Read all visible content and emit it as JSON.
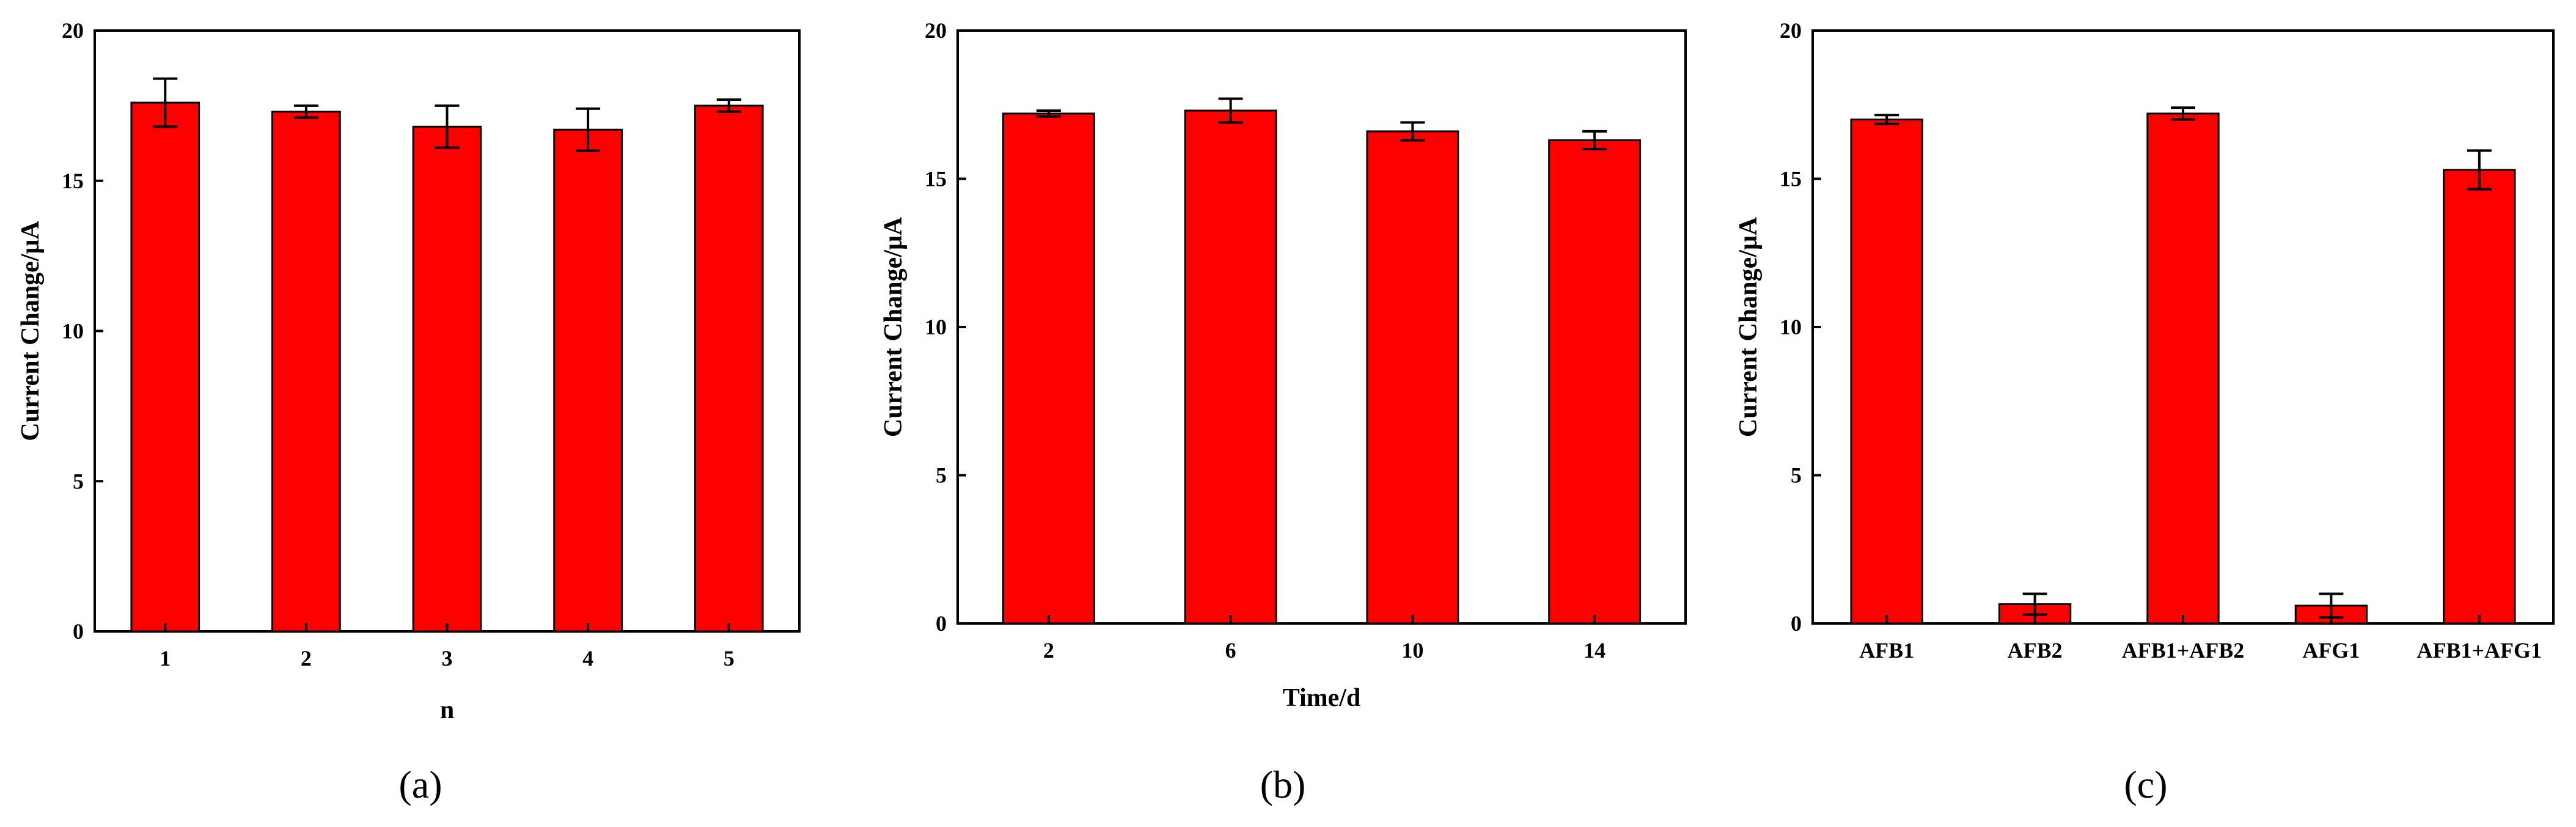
{
  "colors": {
    "bar": "#ff0000",
    "axis": "#000000"
  },
  "chart_data": [
    {
      "type": "bar",
      "caption": "(a)",
      "xlabel": "n",
      "ylabel": "Current Change/μA",
      "ylim": [
        0,
        20
      ],
      "yticks": [
        0,
        5,
        10,
        15,
        20
      ],
      "ytick_labels": [
        "0",
        "5",
        "10",
        "15",
        "20"
      ],
      "categories": [
        "1",
        "2",
        "3",
        "4",
        "5"
      ],
      "values": [
        17.6,
        17.3,
        16.8,
        16.7,
        17.5
      ],
      "errors": [
        0.8,
        0.2,
        0.7,
        0.7,
        0.2
      ]
    },
    {
      "type": "bar",
      "caption": "(b)",
      "xlabel": "Time/d",
      "ylabel": "Current Change/μA",
      "ylim": [
        0,
        20
      ],
      "yticks": [
        0,
        5,
        10,
        15,
        20
      ],
      "ytick_labels": [
        "0",
        "5",
        "10",
        "15",
        "20"
      ],
      "categories": [
        "2",
        "6",
        "10",
        "14"
      ],
      "values": [
        17.2,
        17.3,
        16.6,
        16.3
      ],
      "errors": [
        0.1,
        0.4,
        0.3,
        0.3
      ]
    },
    {
      "type": "bar",
      "caption": "(c)",
      "xlabel": "",
      "ylabel": "Current Change/μA",
      "ylim": [
        0,
        20
      ],
      "yticks": [
        0,
        5,
        10,
        15,
        20
      ],
      "ytick_labels": [
        "0",
        "5",
        "10",
        "15",
        "20"
      ],
      "categories": [
        "AFB1",
        "AFB2",
        "AFB1+AFB2",
        "AFG1",
        "AFB1+AFG1"
      ],
      "values": [
        17.0,
        0.65,
        17.2,
        0.6,
        15.3
      ],
      "errors": [
        0.15,
        0.35,
        0.2,
        0.4,
        0.65
      ]
    }
  ]
}
